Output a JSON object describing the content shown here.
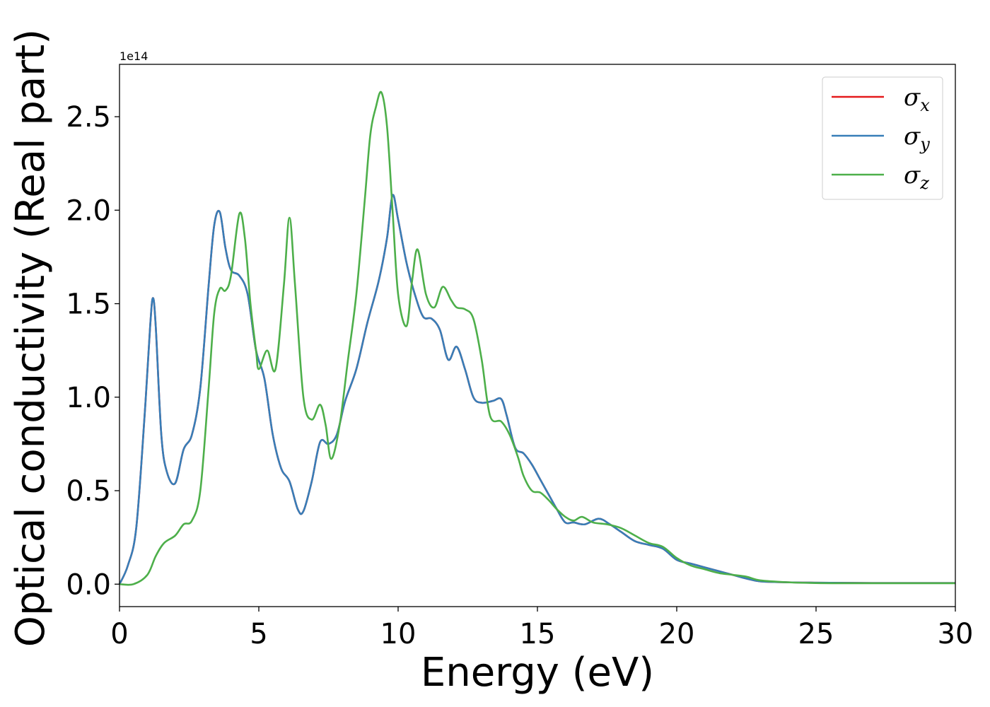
{
  "chart_data": {
    "type": "line",
    "xlabel": "Energy (eV)",
    "ylabel": "Optical conductivity (Real part)",
    "y_offset_label": "1e14",
    "xlim": [
      0,
      30
    ],
    "ylim": [
      -0.12,
      2.78
    ],
    "x_ticks": [
      0,
      5,
      10,
      15,
      20,
      25,
      30
    ],
    "x_tick_labels": [
      "0",
      "5",
      "10",
      "15",
      "20",
      "25",
      "30"
    ],
    "y_ticks": [
      0.0,
      0.5,
      1.0,
      1.5,
      2.0,
      2.5
    ],
    "y_tick_labels": [
      "0.0",
      "0.5",
      "1.0",
      "1.5",
      "2.0",
      "2.5"
    ],
    "grid": false,
    "legend_position": "top-right",
    "series": [
      {
        "name": "σx",
        "symbol": "σ",
        "sub": "x",
        "color": "#e41a1c",
        "x": [
          0,
          0.3,
          0.6,
          0.9,
          1.1,
          1.2,
          1.3,
          1.5,
          1.7,
          2.0,
          2.3,
          2.6,
          2.9,
          3.2,
          3.4,
          3.6,
          3.8,
          4.0,
          4.3,
          4.6,
          4.9,
          5.2,
          5.5,
          5.8,
          6.1,
          6.4,
          6.6,
          6.9,
          7.2,
          7.5,
          7.8,
          8.1,
          8.5,
          8.9,
          9.3,
          9.6,
          9.8,
          10.0,
          10.3,
          10.6,
          10.9,
          11.2,
          11.5,
          11.8,
          12.1,
          12.4,
          12.7,
          13.0,
          13.4,
          13.7,
          13.9,
          14.2,
          14.5,
          14.8,
          15.1,
          15.4,
          15.7,
          16.0,
          16.3,
          16.7,
          17.2,
          17.6,
          18.0,
          18.5,
          19.0,
          19.5,
          20.0,
          20.5,
          21.0,
          21.5,
          22.0,
          22.5,
          23.0,
          24.0,
          25.0,
          26.0,
          27.0,
          28.0,
          29.0,
          30.0
        ],
        "y": [
          0.0,
          0.1,
          0.3,
          0.9,
          1.38,
          1.53,
          1.38,
          0.8,
          0.6,
          0.54,
          0.72,
          0.8,
          1.05,
          1.6,
          1.92,
          1.99,
          1.8,
          1.68,
          1.65,
          1.55,
          1.25,
          1.1,
          0.8,
          0.62,
          0.55,
          0.4,
          0.39,
          0.55,
          0.76,
          0.75,
          0.8,
          0.98,
          1.15,
          1.4,
          1.62,
          1.85,
          2.08,
          1.95,
          1.72,
          1.55,
          1.43,
          1.42,
          1.36,
          1.2,
          1.27,
          1.15,
          1.0,
          0.97,
          0.98,
          0.99,
          0.9,
          0.73,
          0.7,
          0.64,
          0.56,
          0.48,
          0.4,
          0.33,
          0.33,
          0.32,
          0.35,
          0.32,
          0.28,
          0.23,
          0.21,
          0.19,
          0.13,
          0.11,
          0.09,
          0.07,
          0.05,
          0.03,
          0.015,
          0.01,
          0.008,
          0.007,
          0.006,
          0.006,
          0.006,
          0.006
        ]
      },
      {
        "name": "σy",
        "symbol": "σ",
        "sub": "y",
        "color": "#377eb8",
        "x": [
          0,
          0.3,
          0.6,
          0.9,
          1.1,
          1.2,
          1.3,
          1.5,
          1.7,
          2.0,
          2.3,
          2.6,
          2.9,
          3.2,
          3.4,
          3.6,
          3.8,
          4.0,
          4.3,
          4.6,
          4.9,
          5.2,
          5.5,
          5.8,
          6.1,
          6.4,
          6.6,
          6.9,
          7.2,
          7.5,
          7.8,
          8.1,
          8.5,
          8.9,
          9.3,
          9.6,
          9.8,
          10.0,
          10.3,
          10.6,
          10.9,
          11.2,
          11.5,
          11.8,
          12.1,
          12.4,
          12.7,
          13.0,
          13.4,
          13.7,
          13.9,
          14.2,
          14.5,
          14.8,
          15.1,
          15.4,
          15.7,
          16.0,
          16.3,
          16.7,
          17.2,
          17.6,
          18.0,
          18.5,
          19.0,
          19.5,
          20.0,
          20.5,
          21.0,
          21.5,
          22.0,
          22.5,
          23.0,
          24.0,
          25.0,
          26.0,
          27.0,
          28.0,
          29.0,
          30.0
        ],
        "y": [
          0.0,
          0.1,
          0.3,
          0.9,
          1.38,
          1.53,
          1.38,
          0.8,
          0.6,
          0.54,
          0.72,
          0.8,
          1.05,
          1.6,
          1.92,
          1.99,
          1.8,
          1.68,
          1.65,
          1.55,
          1.25,
          1.1,
          0.8,
          0.62,
          0.55,
          0.4,
          0.39,
          0.55,
          0.76,
          0.75,
          0.8,
          0.98,
          1.15,
          1.4,
          1.62,
          1.85,
          2.08,
          1.95,
          1.72,
          1.55,
          1.43,
          1.42,
          1.36,
          1.2,
          1.27,
          1.15,
          1.0,
          0.97,
          0.98,
          0.99,
          0.9,
          0.73,
          0.7,
          0.64,
          0.56,
          0.48,
          0.4,
          0.33,
          0.33,
          0.32,
          0.35,
          0.32,
          0.28,
          0.23,
          0.21,
          0.19,
          0.13,
          0.11,
          0.09,
          0.07,
          0.05,
          0.03,
          0.015,
          0.01,
          0.008,
          0.007,
          0.006,
          0.006,
          0.006,
          0.006
        ]
      },
      {
        "name": "σz",
        "symbol": "σ",
        "sub": "z",
        "color": "#4daf4a",
        "x": [
          0,
          0.5,
          1.0,
          1.3,
          1.6,
          2.0,
          2.3,
          2.6,
          2.9,
          3.2,
          3.4,
          3.6,
          3.8,
          4.0,
          4.3,
          4.5,
          4.7,
          4.9,
          5.0,
          5.3,
          5.6,
          5.9,
          6.1,
          6.3,
          6.6,
          6.9,
          7.2,
          7.4,
          7.6,
          7.9,
          8.2,
          8.5,
          8.8,
          9.0,
          9.2,
          9.4,
          9.6,
          9.8,
          10.0,
          10.3,
          10.5,
          10.7,
          11.0,
          11.3,
          11.6,
          11.9,
          12.1,
          12.4,
          12.7,
          13.0,
          13.3,
          13.7,
          14.0,
          14.3,
          14.5,
          14.8,
          15.1,
          15.4,
          15.7,
          16.0,
          16.3,
          16.6,
          17.0,
          17.5,
          18.0,
          18.5,
          19.0,
          19.5,
          20.0,
          20.5,
          21.0,
          21.5,
          22.0,
          22.5,
          23.0,
          24.0,
          25.0,
          26.0,
          27.0,
          28.0,
          29.0,
          30.0
        ],
        "y": [
          0.0,
          0.0,
          0.05,
          0.15,
          0.22,
          0.26,
          0.32,
          0.34,
          0.5,
          1.05,
          1.45,
          1.58,
          1.57,
          1.65,
          1.98,
          1.85,
          1.5,
          1.25,
          1.15,
          1.25,
          1.15,
          1.6,
          1.96,
          1.6,
          1.0,
          0.88,
          0.96,
          0.85,
          0.67,
          0.85,
          1.2,
          1.55,
          2.05,
          2.4,
          2.55,
          2.63,
          2.45,
          2.0,
          1.55,
          1.38,
          1.62,
          1.79,
          1.55,
          1.48,
          1.59,
          1.52,
          1.48,
          1.47,
          1.42,
          1.2,
          0.9,
          0.87,
          0.8,
          0.68,
          0.58,
          0.5,
          0.49,
          0.45,
          0.4,
          0.36,
          0.34,
          0.36,
          0.33,
          0.32,
          0.3,
          0.26,
          0.22,
          0.2,
          0.14,
          0.1,
          0.08,
          0.06,
          0.05,
          0.04,
          0.02,
          0.01,
          0.006,
          0.005,
          0.005,
          0.005,
          0.005,
          0.005
        ]
      }
    ]
  }
}
